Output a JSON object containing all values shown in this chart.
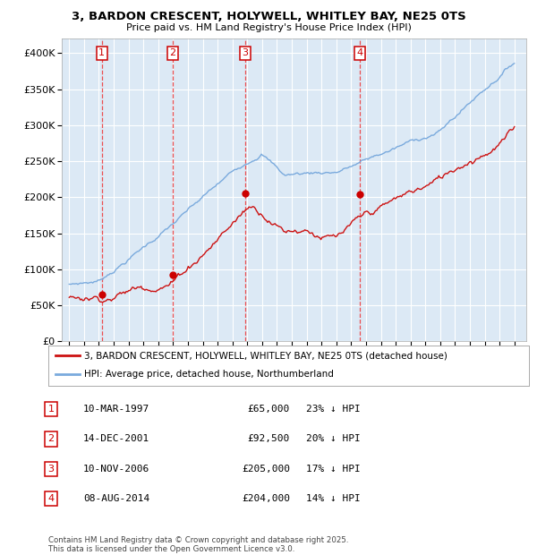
{
  "title_line1": "3, BARDON CRESCENT, HOLYWELL, WHITLEY BAY, NE25 0TS",
  "title_line2": "Price paid vs. HM Land Registry's House Price Index (HPI)",
  "background_color": "#dce9f5",
  "grid_color": "#ffffff",
  "ylim": [
    0,
    420000
  ],
  "yticks": [
    0,
    50000,
    100000,
    150000,
    200000,
    250000,
    300000,
    350000,
    400000
  ],
  "ytick_labels": [
    "£0",
    "£50K",
    "£100K",
    "£150K",
    "£200K",
    "£250K",
    "£300K",
    "£350K",
    "£400K"
  ],
  "sale_dates_num": [
    1997.19,
    2001.95,
    2006.86,
    2014.6
  ],
  "sale_prices": [
    65000,
    92500,
    205000,
    204000
  ],
  "sale_labels": [
    "1",
    "2",
    "3",
    "4"
  ],
  "vline_color": "#ee3333",
  "sale_dot_color": "#cc0000",
  "sale_line_color": "#cc1111",
  "hpi_line_color": "#7aaadd",
  "legend_labels": [
    "3, BARDON CRESCENT, HOLYWELL, WHITLEY BAY, NE25 0TS (detached house)",
    "HPI: Average price, detached house, Northumberland"
  ],
  "table_entries": [
    {
      "num": "1",
      "date": "10-MAR-1997",
      "price": "£65,000",
      "pct": "23% ↓ HPI"
    },
    {
      "num": "2",
      "date": "14-DEC-2001",
      "price": "£92,500",
      "pct": "20% ↓ HPI"
    },
    {
      "num": "3",
      "date": "10-NOV-2006",
      "price": "£205,000",
      "pct": "17% ↓ HPI"
    },
    {
      "num": "4",
      "date": "08-AUG-2014",
      "price": "£204,000",
      "pct": "14% ↓ HPI"
    }
  ],
  "footnote": "Contains HM Land Registry data © Crown copyright and database right 2025.\nThis data is licensed under the Open Government Licence v3.0.",
  "xlim_left": 1994.5,
  "xlim_right": 2025.8
}
